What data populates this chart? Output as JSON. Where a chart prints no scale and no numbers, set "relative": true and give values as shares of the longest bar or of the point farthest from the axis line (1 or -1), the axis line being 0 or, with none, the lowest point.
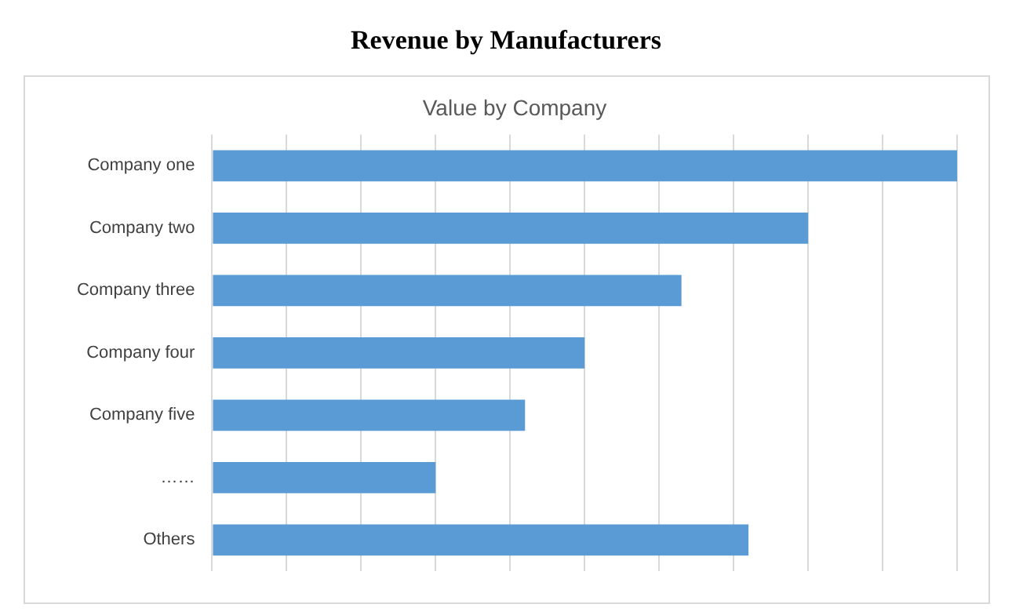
{
  "chart_data": {
    "type": "bar",
    "orientation": "horizontal",
    "title": "Revenue by Manufacturers",
    "subtitle": "Value by Company",
    "categories": [
      "Company one",
      "Company two",
      "Company three",
      "Company four",
      "Company five",
      "……",
      "Others"
    ],
    "values": [
      1,
      0.8,
      0.63,
      0.5,
      0.42,
      0.3,
      0.72
    ],
    "color": "#5b9bd5",
    "relative": true,
    "grid": "x",
    "legend": false
  }
}
